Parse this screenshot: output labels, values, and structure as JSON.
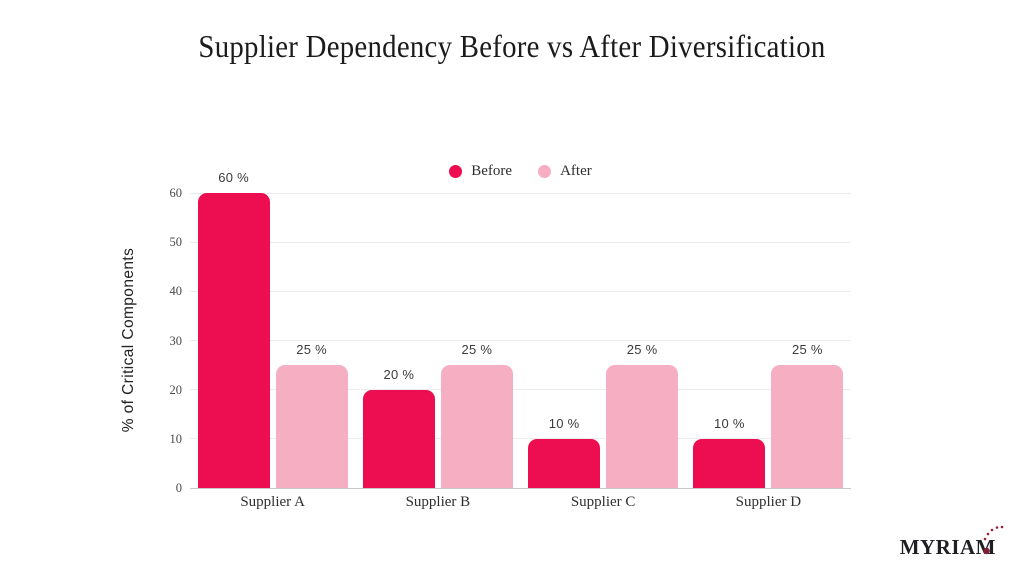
{
  "chart_data": {
    "type": "bar",
    "title": "Supplier Dependency Before vs After Diversification",
    "categories": [
      "Supplier A",
      "Supplier B",
      "Supplier C",
      "Supplier D"
    ],
    "series": [
      {
        "name": "Before",
        "color": "#EC0E50",
        "values": [
          60,
          20,
          10,
          10
        ]
      },
      {
        "name": "After",
        "color": "#F5AEC2",
        "values": [
          25,
          25,
          25,
          25
        ]
      }
    ],
    "value_suffix": " %",
    "xlabel": "",
    "ylabel": "% of Critical Components",
    "yticks": [
      0,
      10,
      20,
      30,
      40,
      50,
      60
    ],
    "ylim": [
      0,
      60
    ],
    "grid": true,
    "legend_position": "top-center"
  },
  "colors": {
    "before": "#EC0E50",
    "after": "#F5AEC2",
    "gridline": "#ececec",
    "axis_line": "#c9c9c9",
    "logo_accent": "#9b1f38"
  },
  "branding": {
    "logo_text": "MYRIAM"
  }
}
